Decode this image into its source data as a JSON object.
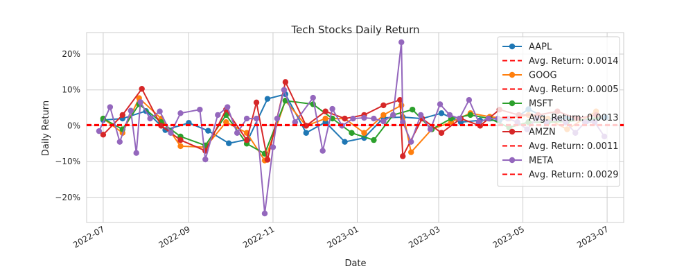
{
  "chart_data": {
    "type": "line",
    "title": "Tech Stocks Daily Return",
    "xlabel": "Date",
    "ylabel": "Daily Return",
    "x_range": [
      "2022-06-19",
      "2023-07-13"
    ],
    "ylim": [
      -0.27,
      0.26
    ],
    "x_ticks": [
      "2022-07",
      "2022-09",
      "2022-11",
      "2023-01",
      "2023-03",
      "2023-05",
      "2023-07"
    ],
    "y_ticks": [
      {
        "value": 0.2,
        "label": "20%"
      },
      {
        "value": 0.1,
        "label": "10%"
      },
      {
        "value": 0.0,
        "label": "0%"
      },
      {
        "value": -0.1,
        "label": "−10%"
      },
      {
        "value": -0.2,
        "label": "−20%"
      }
    ],
    "grid": true,
    "legend_position": "top-right",
    "series": [
      {
        "name": "AAPL",
        "color": "#1f77b4",
        "avg_label": "Avg. Return: 0.0014",
        "avg": 0.0014,
        "points": [
          [
            "2022-07-01",
            0.016
          ],
          [
            "2022-07-15",
            0.02
          ],
          [
            "2022-08-01",
            0.041
          ],
          [
            "2022-08-15",
            -0.012
          ],
          [
            "2022-09-01",
            0.008
          ],
          [
            "2022-09-15",
            -0.014
          ],
          [
            "2022-09-30",
            -0.049
          ],
          [
            "2022-10-14",
            -0.038
          ],
          [
            "2022-10-28",
            0.075
          ],
          [
            "2022-11-10",
            0.088
          ],
          [
            "2022-11-25",
            -0.02
          ],
          [
            "2022-12-09",
            0.01
          ],
          [
            "2022-12-23",
            -0.045
          ],
          [
            "2023-01-06",
            -0.034
          ],
          [
            "2023-01-20",
            0.022
          ],
          [
            "2023-02-03",
            0.024
          ],
          [
            "2023-02-17",
            0.02
          ],
          [
            "2023-03-03",
            0.035
          ],
          [
            "2023-03-17",
            0.01
          ],
          [
            "2023-03-31",
            0.015
          ],
          [
            "2023-04-14",
            0.015
          ],
          [
            "2023-04-28",
            0.028
          ],
          [
            "2023-05-05",
            0.046
          ],
          [
            "2023-05-19",
            0.02
          ],
          [
            "2023-06-02",
            0.02
          ],
          [
            "2023-06-16",
            0.012
          ],
          [
            "2023-06-30",
            0.023
          ]
        ]
      },
      {
        "name": "GOOG",
        "color": "#ff7f0e",
        "avg_label": "Avg. Return: 0.0005",
        "avg": 0.0005,
        "points": [
          [
            "2022-07-01",
            0.02
          ],
          [
            "2022-07-15",
            -0.02
          ],
          [
            "2022-07-27",
            0.077
          ],
          [
            "2022-08-12",
            0.02
          ],
          [
            "2022-08-26",
            -0.057
          ],
          [
            "2022-09-13",
            -0.06
          ],
          [
            "2022-09-28",
            0.01
          ],
          [
            "2022-10-13",
            -0.02
          ],
          [
            "2022-10-26",
            -0.097
          ],
          [
            "2022-11-10",
            0.07
          ],
          [
            "2022-11-25",
            0.0
          ],
          [
            "2022-12-09",
            0.02
          ],
          [
            "2022-12-23",
            0.02
          ],
          [
            "2023-01-06",
            -0.02
          ],
          [
            "2023-01-20",
            0.03
          ],
          [
            "2023-02-02",
            0.057
          ],
          [
            "2023-02-09",
            -0.074
          ],
          [
            "2023-02-24",
            -0.01
          ],
          [
            "2023-03-10",
            0.01
          ],
          [
            "2023-03-24",
            0.035
          ],
          [
            "2023-04-07",
            0.025
          ],
          [
            "2023-04-21",
            0.02
          ],
          [
            "2023-05-05",
            0.03
          ],
          [
            "2023-05-19",
            0.02
          ],
          [
            "2023-06-02",
            -0.01
          ],
          [
            "2023-06-23",
            0.04
          ]
        ]
      },
      {
        "name": "MSFT",
        "color": "#2ca02c",
        "avg_label": "Avg. Return: 0.0013",
        "avg": 0.0013,
        "points": [
          [
            "2022-07-01",
            0.02
          ],
          [
            "2022-07-15",
            -0.01
          ],
          [
            "2022-07-27",
            0.06
          ],
          [
            "2022-08-12",
            0.01
          ],
          [
            "2022-08-26",
            -0.03
          ],
          [
            "2022-09-13",
            -0.055
          ],
          [
            "2022-09-28",
            0.03
          ],
          [
            "2022-10-13",
            -0.05
          ],
          [
            "2022-10-26",
            -0.078
          ],
          [
            "2022-11-10",
            0.07
          ],
          [
            "2022-11-30",
            0.06
          ],
          [
            "2022-12-14",
            0.02
          ],
          [
            "2022-12-28",
            -0.02
          ],
          [
            "2023-01-13",
            -0.04
          ],
          [
            "2023-01-27",
            0.03
          ],
          [
            "2023-02-10",
            0.045
          ],
          [
            "2023-02-24",
            -0.01
          ],
          [
            "2023-03-10",
            0.02
          ],
          [
            "2023-03-24",
            0.03
          ],
          [
            "2023-04-07",
            0.02
          ],
          [
            "2023-04-21",
            -0.005
          ],
          [
            "2023-05-05",
            0.01
          ],
          [
            "2023-05-19",
            0.01
          ],
          [
            "2023-06-02",
            0.012
          ],
          [
            "2023-06-23",
            0.02
          ]
        ]
      },
      {
        "name": "AMZN",
        "color": "#d62728",
        "avg_label": "Avg. Return: 0.0011",
        "avg": 0.0011,
        "points": [
          [
            "2022-07-01",
            -0.025
          ],
          [
            "2022-07-15",
            0.03
          ],
          [
            "2022-07-29",
            0.103
          ],
          [
            "2022-08-12",
            0.0
          ],
          [
            "2022-08-26",
            -0.04
          ],
          [
            "2022-09-13",
            -0.07
          ],
          [
            "2022-09-28",
            0.045
          ],
          [
            "2022-10-13",
            -0.04
          ],
          [
            "2022-10-20",
            0.065
          ],
          [
            "2022-10-28",
            -0.095
          ],
          [
            "2022-11-10",
            0.122
          ],
          [
            "2022-11-25",
            0.0
          ],
          [
            "2022-12-09",
            0.04
          ],
          [
            "2022-12-23",
            0.02
          ],
          [
            "2023-01-06",
            0.03
          ],
          [
            "2023-01-20",
            0.057
          ],
          [
            "2023-02-01",
            0.072
          ],
          [
            "2023-02-03",
            -0.085
          ],
          [
            "2023-02-17",
            0.02
          ],
          [
            "2023-03-03",
            -0.02
          ],
          [
            "2023-03-17",
            0.02
          ],
          [
            "2023-03-31",
            0.0
          ],
          [
            "2023-04-14",
            0.045
          ],
          [
            "2023-04-28",
            0.03
          ],
          [
            "2023-05-12",
            0.03
          ],
          [
            "2023-05-26",
            0.04
          ],
          [
            "2023-06-09",
            0.02
          ],
          [
            "2023-06-23",
            0.03
          ]
        ]
      },
      {
        "name": "META",
        "color": "#9467bd",
        "avg_label": "Avg. Return: 0.0029",
        "avg": 0.0029,
        "points": [
          [
            "2022-06-28",
            -0.015
          ],
          [
            "2022-07-06",
            0.052
          ],
          [
            "2022-07-13",
            -0.045
          ],
          [
            "2022-07-21",
            0.042
          ],
          [
            "2022-07-25",
            -0.076
          ],
          [
            "2022-07-28",
            0.066
          ],
          [
            "2022-08-04",
            0.02
          ],
          [
            "2022-08-11",
            0.04
          ],
          [
            "2022-08-19",
            -0.02
          ],
          [
            "2022-08-26",
            0.035
          ],
          [
            "2022-09-09",
            0.045
          ],
          [
            "2022-09-13",
            -0.094
          ],
          [
            "2022-09-22",
            0.03
          ],
          [
            "2022-09-29",
            0.052
          ],
          [
            "2022-10-06",
            -0.02
          ],
          [
            "2022-10-13",
            0.02
          ],
          [
            "2022-10-20",
            0.02
          ],
          [
            "2022-10-26",
            -0.245
          ],
          [
            "2022-11-01",
            -0.06
          ],
          [
            "2022-11-04",
            0.02
          ],
          [
            "2022-11-09",
            0.1
          ],
          [
            "2022-11-17",
            0.01
          ],
          [
            "2022-11-30",
            0.078
          ],
          [
            "2022-12-07",
            -0.07
          ],
          [
            "2022-12-14",
            0.047
          ],
          [
            "2022-12-21",
            0.0
          ],
          [
            "2022-12-29",
            0.02
          ],
          [
            "2023-01-06",
            0.022
          ],
          [
            "2023-01-13",
            0.02
          ],
          [
            "2023-01-20",
            0.012
          ],
          [
            "2023-01-27",
            0.03
          ],
          [
            "2023-02-02",
            0.233
          ],
          [
            "2023-02-03",
            0.01
          ],
          [
            "2023-02-09",
            -0.045
          ],
          [
            "2023-02-16",
            0.03
          ],
          [
            "2023-02-23",
            -0.01
          ],
          [
            "2023-03-02",
            0.06
          ],
          [
            "2023-03-09",
            0.03
          ],
          [
            "2023-03-16",
            0.02
          ],
          [
            "2023-03-23",
            0.072
          ],
          [
            "2023-03-30",
            0.01
          ],
          [
            "2023-04-06",
            0.02
          ],
          [
            "2023-04-13",
            0.02
          ],
          [
            "2023-04-20",
            0.02
          ],
          [
            "2023-04-27",
            0.01
          ],
          [
            "2023-05-04",
            -0.01
          ],
          [
            "2023-05-11",
            0.02
          ],
          [
            "2023-05-18",
            0.01
          ],
          [
            "2023-05-25",
            0.02
          ],
          [
            "2023-06-01",
            0.01
          ],
          [
            "2023-06-08",
            -0.02
          ],
          [
            "2023-06-15",
            0.01
          ],
          [
            "2023-06-22",
            0.01
          ],
          [
            "2023-06-29",
            -0.03
          ]
        ]
      }
    ]
  }
}
